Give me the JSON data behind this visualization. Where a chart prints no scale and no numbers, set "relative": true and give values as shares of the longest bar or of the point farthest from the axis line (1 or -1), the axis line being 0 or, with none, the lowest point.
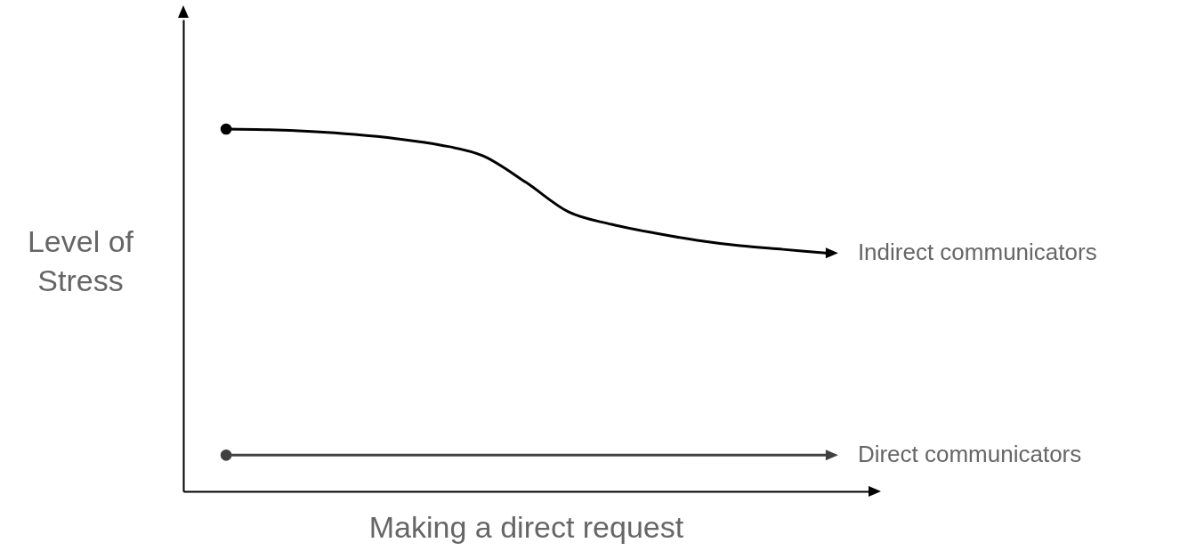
{
  "chart_data": {
    "type": "line",
    "relative": true,
    "xlabel": "Making a direct request",
    "ylabel": "Level of Stress",
    "grid": false,
    "legend": false,
    "categories": [
      null,
      null,
      null,
      null,
      null,
      null,
      null,
      null,
      null,
      null,
      null,
      null,
      null,
      null,
      null
    ],
    "series": [
      {
        "name": "Indirect communicators",
        "color": "#000000",
        "values": [
          1,
          0.998,
          0.993,
          0.985,
          0.973,
          0.956,
          0.926,
          0.853,
          0.771,
          0.737,
          0.713,
          0.693,
          0.678,
          0.668,
          0.658
        ]
      },
      {
        "name": "Direct communicators",
        "color": "#404040",
        "values": [
          0.1,
          0.1,
          0.1,
          0.1,
          0.1,
          0.1,
          0.1,
          0.1,
          0.1,
          0.1,
          0.1,
          0.1,
          0.1,
          0.1,
          0.1
        ]
      }
    ]
  }
}
